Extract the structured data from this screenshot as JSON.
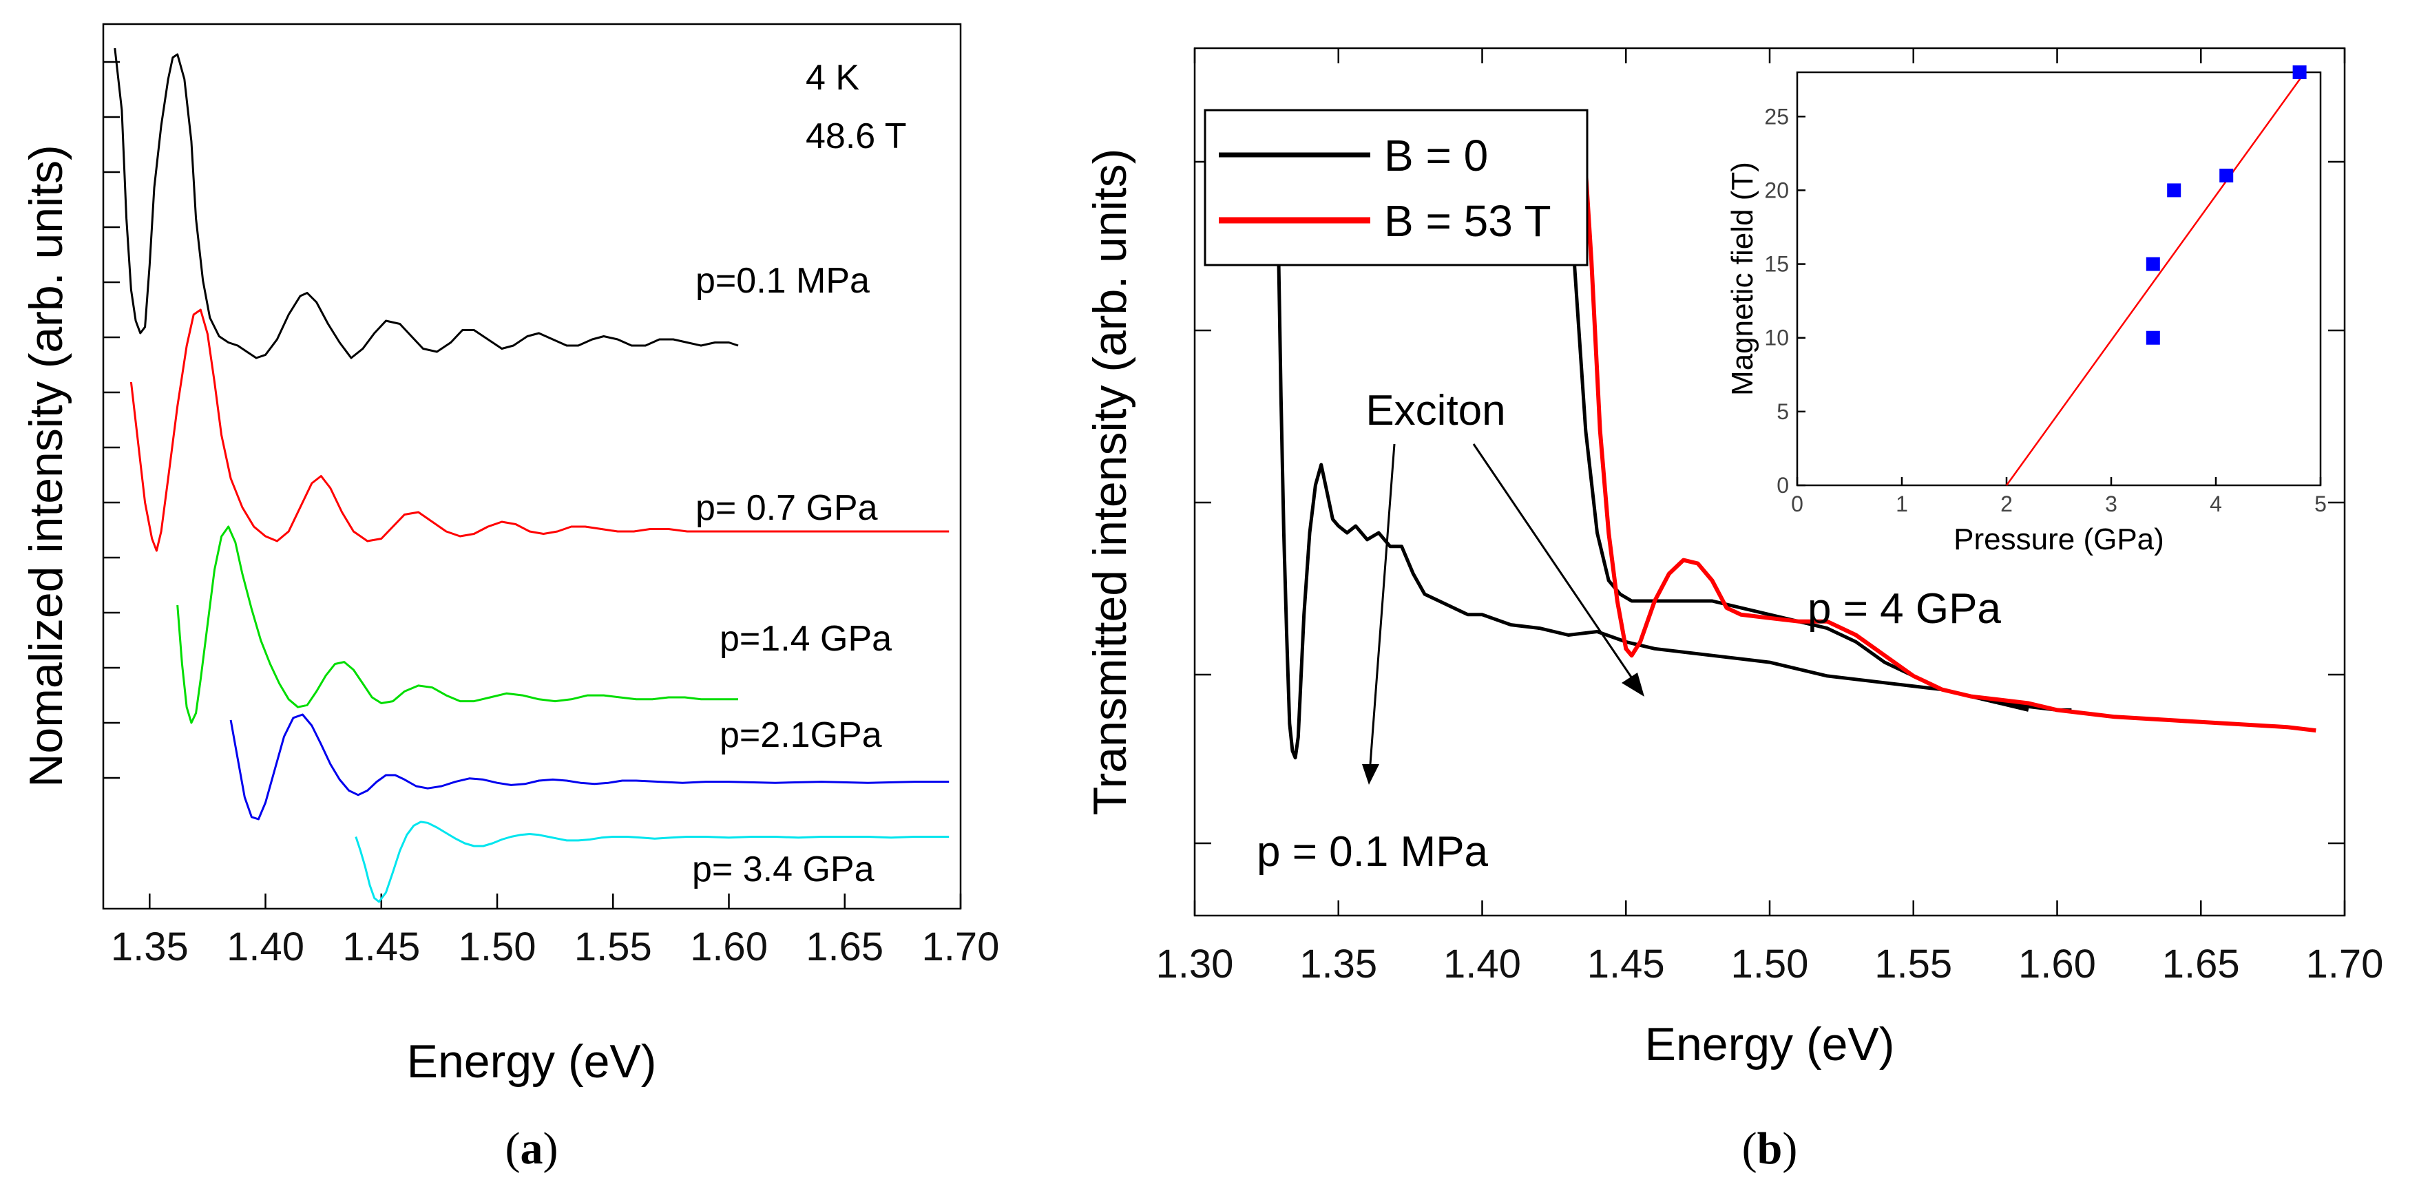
{
  "chart_data": [
    {
      "id": "a",
      "type": "line",
      "caption_letter": "a",
      "title": "",
      "xlabel": "Energy (eV)",
      "ylabel": "Nomalized intensity (arb. units)",
      "xlim": [
        1.33,
        1.7
      ],
      "xticks": [
        "1.35",
        "1.40",
        "1.45",
        "1.50",
        "1.55",
        "1.60",
        "1.65",
        "1.70"
      ],
      "y_unitless": true,
      "annotations": [
        "4 K",
        "48.6 T"
      ],
      "series": [
        {
          "name": "p=0.1 MPa",
          "color": "#000000",
          "x": [
            1.335,
            1.338,
            1.34,
            1.342,
            1.344,
            1.346,
            1.348,
            1.35,
            1.352,
            1.355,
            1.358,
            1.36,
            1.362,
            1.365,
            1.368,
            1.37,
            1.373,
            1.376,
            1.38,
            1.384,
            1.388,
            1.392,
            1.396,
            1.4,
            1.405,
            1.41,
            1.415,
            1.418,
            1.422,
            1.427,
            1.432,
            1.437,
            1.442,
            1.447,
            1.452,
            1.458,
            1.463,
            1.468,
            1.474,
            1.48,
            1.485,
            1.49,
            1.496,
            1.502,
            1.507,
            1.513,
            1.518,
            1.524,
            1.53,
            1.535,
            1.541,
            1.546,
            1.552,
            1.558,
            1.564,
            1.57,
            1.576,
            1.582,
            1.588,
            1.594,
            1.6,
            1.604
          ],
          "y": [
            1.0,
            0.8,
            0.45,
            0.22,
            0.12,
            0.08,
            0.1,
            0.3,
            0.55,
            0.75,
            0.9,
            0.97,
            0.98,
            0.9,
            0.7,
            0.45,
            0.25,
            0.13,
            0.07,
            0.05,
            0.04,
            0.02,
            0.0,
            0.01,
            0.06,
            0.14,
            0.2,
            0.21,
            0.18,
            0.11,
            0.05,
            0.0,
            0.03,
            0.08,
            0.12,
            0.11,
            0.07,
            0.03,
            0.02,
            0.05,
            0.09,
            0.09,
            0.06,
            0.03,
            0.04,
            0.07,
            0.08,
            0.06,
            0.04,
            0.04,
            0.06,
            0.07,
            0.06,
            0.04,
            0.04,
            0.06,
            0.06,
            0.05,
            0.04,
            0.05,
            0.05,
            0.04
          ]
        },
        {
          "name": "p= 0.7 GPa",
          "color": "#ff0000",
          "x": [
            1.342,
            1.345,
            1.348,
            1.351,
            1.353,
            1.355,
            1.358,
            1.362,
            1.366,
            1.369,
            1.372,
            1.375,
            1.378,
            1.381,
            1.385,
            1.39,
            1.395,
            1.4,
            1.405,
            1.41,
            1.415,
            1.42,
            1.424,
            1.428,
            1.433,
            1.438,
            1.444,
            1.45,
            1.455,
            1.46,
            1.466,
            1.472,
            1.478,
            1.484,
            1.49,
            1.496,
            1.502,
            1.508,
            1.514,
            1.52,
            1.526,
            1.532,
            1.538,
            1.545,
            1.552,
            1.559,
            1.566,
            1.574,
            1.582,
            1.59,
            1.6,
            1.62,
            1.64,
            1.66,
            1.68,
            1.695
          ],
          "y": [
            0.7,
            0.45,
            0.2,
            0.05,
            0.0,
            0.08,
            0.3,
            0.6,
            0.85,
            0.98,
            1.0,
            0.9,
            0.7,
            0.48,
            0.3,
            0.18,
            0.1,
            0.06,
            0.04,
            0.08,
            0.18,
            0.28,
            0.31,
            0.26,
            0.16,
            0.08,
            0.04,
            0.05,
            0.1,
            0.15,
            0.16,
            0.12,
            0.08,
            0.06,
            0.07,
            0.1,
            0.12,
            0.11,
            0.08,
            0.07,
            0.08,
            0.1,
            0.1,
            0.09,
            0.08,
            0.08,
            0.09,
            0.09,
            0.08,
            0.08,
            0.08,
            0.08,
            0.08,
            0.08,
            0.08,
            0.08
          ]
        },
        {
          "name": "p=1.4 GPa",
          "color": "#00dd00",
          "x": [
            1.362,
            1.364,
            1.366,
            1.368,
            1.37,
            1.372,
            1.375,
            1.378,
            1.381,
            1.384,
            1.387,
            1.39,
            1.394,
            1.398,
            1.402,
            1.406,
            1.41,
            1.414,
            1.418,
            1.422,
            1.426,
            1.43,
            1.434,
            1.438,
            1.442,
            1.446,
            1.45,
            1.455,
            1.46,
            1.466,
            1.472,
            1.478,
            1.484,
            1.49,
            1.497,
            1.504,
            1.511,
            1.518,
            1.525,
            1.532,
            1.539,
            1.546,
            1.553,
            1.56,
            1.567,
            1.574,
            1.581,
            1.588,
            1.595,
            1.6,
            1.604
          ],
          "y": [
            0.6,
            0.3,
            0.08,
            0.0,
            0.05,
            0.22,
            0.5,
            0.78,
            0.95,
            1.0,
            0.92,
            0.76,
            0.58,
            0.42,
            0.3,
            0.2,
            0.12,
            0.08,
            0.09,
            0.16,
            0.24,
            0.3,
            0.31,
            0.27,
            0.2,
            0.13,
            0.1,
            0.11,
            0.16,
            0.19,
            0.18,
            0.14,
            0.11,
            0.11,
            0.13,
            0.15,
            0.14,
            0.12,
            0.11,
            0.12,
            0.14,
            0.14,
            0.13,
            0.12,
            0.12,
            0.13,
            0.13,
            0.12,
            0.12,
            0.12,
            0.12
          ]
        },
        {
          "name": "p=2.1GPa",
          "color": "#0000ee",
          "x": [
            1.385,
            1.388,
            1.391,
            1.394,
            1.397,
            1.4,
            1.404,
            1.408,
            1.412,
            1.416,
            1.42,
            1.424,
            1.428,
            1.432,
            1.436,
            1.44,
            1.444,
            1.448,
            1.452,
            1.456,
            1.46,
            1.465,
            1.47,
            1.476,
            1.482,
            1.488,
            1.494,
            1.5,
            1.506,
            1.512,
            1.518,
            1.524,
            1.53,
            1.536,
            1.542,
            1.548,
            1.554,
            1.56,
            1.57,
            1.58,
            1.59,
            1.6,
            1.62,
            1.64,
            1.66,
            1.68,
            1.695
          ],
          "y": [
            0.9,
            0.55,
            0.2,
            0.02,
            0.0,
            0.15,
            0.45,
            0.75,
            0.92,
            0.95,
            0.85,
            0.68,
            0.5,
            0.36,
            0.26,
            0.22,
            0.26,
            0.34,
            0.4,
            0.4,
            0.36,
            0.3,
            0.28,
            0.3,
            0.34,
            0.37,
            0.36,
            0.33,
            0.31,
            0.32,
            0.35,
            0.36,
            0.35,
            0.33,
            0.32,
            0.33,
            0.35,
            0.35,
            0.34,
            0.33,
            0.34,
            0.34,
            0.33,
            0.34,
            0.33,
            0.34,
            0.34
          ]
        },
        {
          "name": "p= 3.4 GPa",
          "color": "#00e5ee",
          "x": [
            1.439,
            1.441,
            1.443,
            1.445,
            1.447,
            1.449,
            1.452,
            1.455,
            1.458,
            1.461,
            1.464,
            1.467,
            1.47,
            1.474,
            1.478,
            1.482,
            1.486,
            1.49,
            1.494,
            1.498,
            1.502,
            1.506,
            1.51,
            1.514,
            1.518,
            1.522,
            1.526,
            1.53,
            1.535,
            1.54,
            1.545,
            1.55,
            1.556,
            1.562,
            1.568,
            1.575,
            1.582,
            1.59,
            1.6,
            1.61,
            1.62,
            1.63,
            1.64,
            1.65,
            1.66,
            1.67,
            1.68,
            1.695
          ],
          "y": [
            0.7,
            0.55,
            0.38,
            0.18,
            0.04,
            0.0,
            0.1,
            0.32,
            0.55,
            0.72,
            0.82,
            0.86,
            0.85,
            0.8,
            0.74,
            0.68,
            0.63,
            0.6,
            0.6,
            0.63,
            0.67,
            0.7,
            0.72,
            0.73,
            0.72,
            0.7,
            0.68,
            0.66,
            0.66,
            0.67,
            0.69,
            0.7,
            0.7,
            0.69,
            0.68,
            0.69,
            0.7,
            0.7,
            0.69,
            0.7,
            0.7,
            0.69,
            0.7,
            0.7,
            0.7,
            0.69,
            0.7,
            0.7
          ]
        }
      ]
    },
    {
      "id": "b",
      "type": "line",
      "caption_letter": "b",
      "title": "",
      "xlabel": "Energy (eV)",
      "ylabel": "Transmitted intensity (arb. units)",
      "xlim": [
        1.3,
        1.7
      ],
      "xticks": [
        "1.30",
        "1.35",
        "1.40",
        "1.45",
        "1.50",
        "1.55",
        "1.60",
        "1.65",
        "1.70"
      ],
      "ylim": [
        0,
        1
      ],
      "y_unitless": true,
      "legend": [
        {
          "label": "B = 0",
          "color": "#000000"
        },
        {
          "label": "B = 53 T",
          "color": "#ff0000"
        }
      ],
      "annotations": [
        "Exciton",
        "p = 4 GPa",
        "p = 0.1 MPa"
      ],
      "series": [
        {
          "name": "p = 0.1 MPa, B = 0",
          "color": "#000000",
          "x": [
            1.328,
            1.329,
            1.33,
            1.331,
            1.332,
            1.333,
            1.334,
            1.335,
            1.336,
            1.338,
            1.34,
            1.342,
            1.344,
            1.346,
            1.348,
            1.35,
            1.353,
            1.356,
            1.36,
            1.364,
            1.368,
            1.372,
            1.376,
            1.38,
            1.385,
            1.39,
            1.395,
            1.4,
            1.41,
            1.42,
            1.43,
            1.44,
            1.45,
            1.46,
            1.48,
            1.5,
            1.52,
            1.54,
            1.56,
            1.58,
            1.6,
            1.605
          ],
          "y": [
            1.0,
            0.85,
            0.6,
            0.4,
            0.25,
            0.12,
            0.08,
            0.07,
            0.1,
            0.28,
            0.4,
            0.47,
            0.5,
            0.46,
            0.42,
            0.41,
            0.4,
            0.41,
            0.39,
            0.4,
            0.38,
            0.38,
            0.34,
            0.31,
            0.3,
            0.29,
            0.28,
            0.28,
            0.265,
            0.26,
            0.25,
            0.255,
            0.24,
            0.23,
            0.22,
            0.21,
            0.19,
            0.18,
            0.17,
            0.15,
            0.14,
            0.14
          ]
        },
        {
          "name": "p = 4 GPa, B = 0",
          "color": "#000000",
          "x": [
            1.428,
            1.432,
            1.436,
            1.44,
            1.444,
            1.448,
            1.452,
            1.46,
            1.47,
            1.48,
            1.49,
            1.5,
            1.51,
            1.52,
            1.53,
            1.54,
            1.55,
            1.56,
            1.57,
            1.58,
            1.59
          ],
          "y": [
            1.0,
            0.8,
            0.55,
            0.4,
            0.33,
            0.31,
            0.3,
            0.3,
            0.3,
            0.3,
            0.29,
            0.28,
            0.27,
            0.26,
            0.24,
            0.21,
            0.19,
            0.17,
            0.16,
            0.15,
            0.14
          ]
        },
        {
          "name": "p = 4 GPa, B = 53 T",
          "color": "#ff0000",
          "x": [
            1.435,
            1.438,
            1.441,
            1.444,
            1.447,
            1.45,
            1.452,
            1.455,
            1.46,
            1.465,
            1.47,
            1.475,
            1.48,
            1.485,
            1.49,
            1.5,
            1.51,
            1.52,
            1.53,
            1.54,
            1.55,
            1.56,
            1.57,
            1.58,
            1.59,
            1.6,
            1.62,
            1.64,
            1.66,
            1.68,
            1.69
          ],
          "y": [
            1.0,
            0.8,
            0.55,
            0.4,
            0.3,
            0.23,
            0.22,
            0.24,
            0.3,
            0.34,
            0.36,
            0.355,
            0.33,
            0.29,
            0.28,
            0.275,
            0.27,
            0.27,
            0.25,
            0.22,
            0.19,
            0.17,
            0.16,
            0.155,
            0.15,
            0.14,
            0.13,
            0.125,
            0.12,
            0.115,
            0.11
          ]
        }
      ],
      "inset": {
        "type": "scatter",
        "xlabel": "Pressure (GPa)",
        "ylabel": "Magnetic field (T)",
        "xlim": [
          0,
          5
        ],
        "ylim": [
          0,
          28
        ],
        "xticks": [
          "0",
          "1",
          "2",
          "3",
          "4",
          "5"
        ],
        "yticks": [
          "0",
          "5",
          "10",
          "15",
          "20",
          "25"
        ],
        "points": [
          {
            "x": 3.4,
            "y": 10
          },
          {
            "x": 3.4,
            "y": 15
          },
          {
            "x": 3.6,
            "y": 20
          },
          {
            "x": 4.1,
            "y": 21
          },
          {
            "x": 4.8,
            "y": 28
          }
        ],
        "fit_line": {
          "x": [
            2.0,
            4.85
          ],
          "y": [
            0,
            28
          ]
        },
        "point_color": "#0000ff",
        "line_color": "#ff0000"
      }
    }
  ]
}
